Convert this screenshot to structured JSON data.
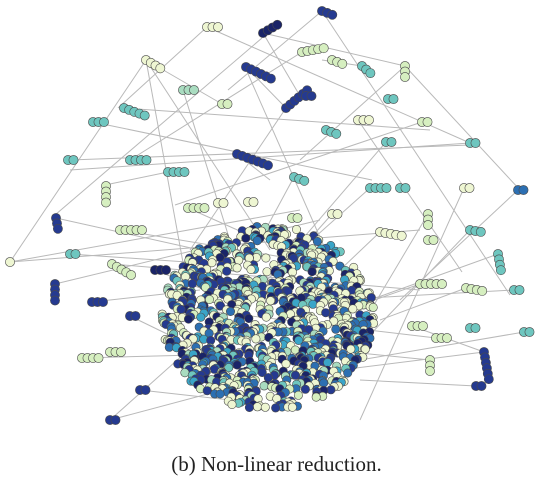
{
  "figure": {
    "caption": "(b)  Non-linear reduction.",
    "palette": [
      "#eef6d2",
      "#d6efc0",
      "#a9dcc0",
      "#6ec6bf",
      "#3aa5c8",
      "#2c6fb2",
      "#253a90",
      "#1a2468"
    ],
    "edge_color": "#b9b9b9",
    "node_stroke": "#4a4a4a"
  }
}
